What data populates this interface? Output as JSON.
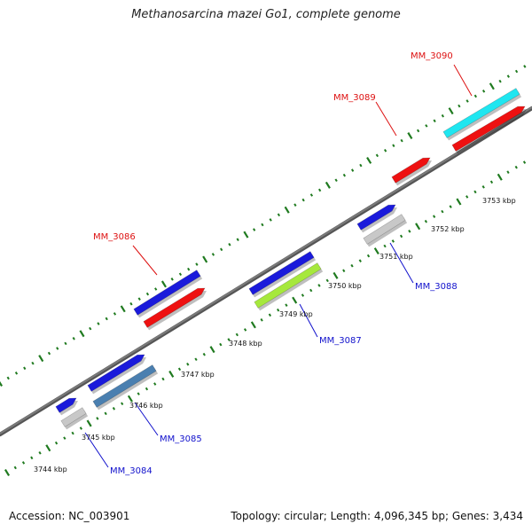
{
  "title": "Methanosarcina mazei Go1, complete genome",
  "footer": {
    "accession": "Accession: NC_003901",
    "stats": "Topology: circular; Length: 4,096,345 bp; Genes: 3,434"
  },
  "colors": {
    "backbone": "#7a7a7a",
    "ticks": "#1f7a1f",
    "forward_label": "#dd1111",
    "reverse_label": "#1111cc"
  },
  "tick_labels": [
    "3744 kbp",
    "3745 kbp",
    "3746 kbp",
    "3747 kbp",
    "3748 kbp",
    "3749 kbp",
    "3750 kbp",
    "3751 kbp",
    "3752 kbp",
    "3753 kbp"
  ],
  "genes": [
    {
      "name": "MM_3084",
      "strand": "-",
      "color": "#c8c8c8"
    },
    {
      "name": "MM_3085",
      "strand": "-",
      "color": "#4a7fb0"
    },
    {
      "name": "MM_3086",
      "strand": "+",
      "color": "#ee1111"
    },
    {
      "name": "MM_3087",
      "strand": "-",
      "color": "#a6e83c"
    },
    {
      "name": "MM_3088",
      "strand": "-",
      "color": "#c8c8c8"
    },
    {
      "name": "MM_3089",
      "strand": "+",
      "color": "#ee1111"
    },
    {
      "name": "MM_3090",
      "strand": "+",
      "color": "#ee1111"
    }
  ],
  "cds_features": [
    "blue-cds"
  ],
  "cds_colors": {
    "blue": "#1a1adb"
  }
}
